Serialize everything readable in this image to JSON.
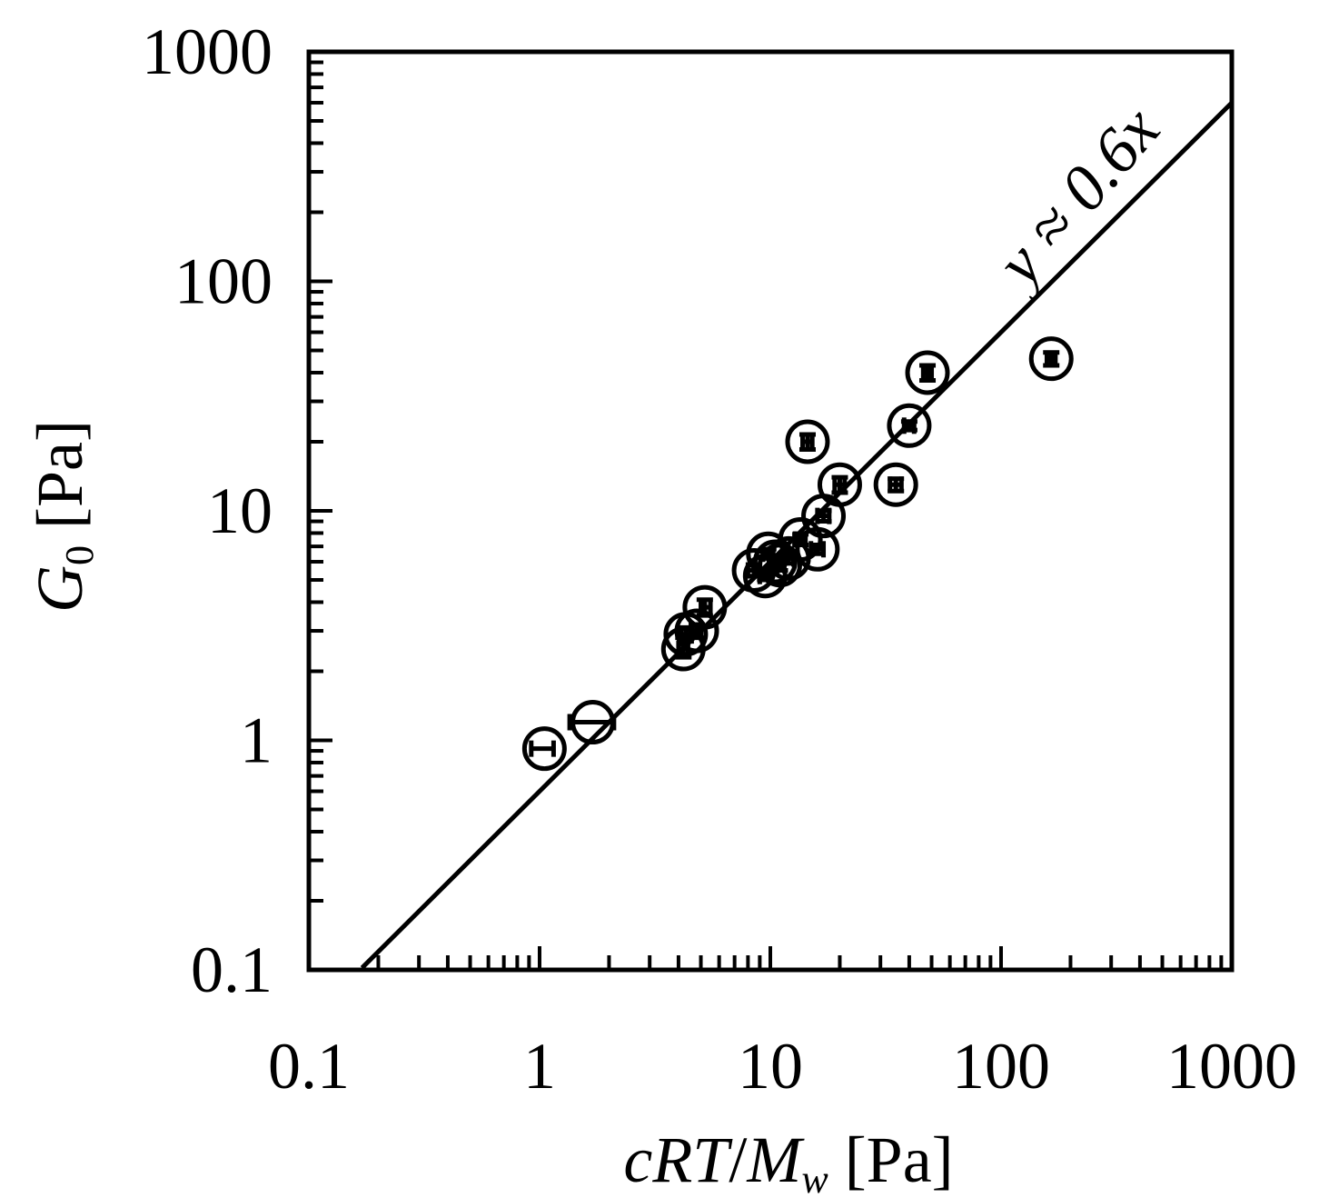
{
  "chart_data": {
    "type": "scatter",
    "xscale": "log",
    "yscale": "log",
    "xlim": [
      0.1,
      1000
    ],
    "ylim": [
      0.1,
      1000
    ],
    "xticks": [
      "0.1",
      "1",
      "10",
      "100",
      "1000"
    ],
    "yticks": [
      "0.1",
      "1",
      "10",
      "100",
      "1000"
    ],
    "xlabel": {
      "c": "c",
      "RT": "RT",
      "slash": "/",
      "M": "M",
      "w": "w",
      "unit": " [Pa]"
    },
    "ylabel": {
      "G": "G",
      "sub": "0",
      "unit": " [Pa]"
    },
    "fit_line": {
      "label": "y ≈ 0.6x",
      "slope": 0.6,
      "x_range": [
        0.17,
        1000
      ]
    },
    "grid": false,
    "marker": "open-circle-with-error-bars",
    "points": [
      {
        "x": 1.05,
        "y": 0.92,
        "xerr": [
          0.92,
          1.15
        ],
        "yerr": [
          0.92,
          0.92
        ]
      },
      {
        "x": 1.7,
        "y": 1.2,
        "xerr": [
          1.35,
          2.1
        ],
        "yerr": [
          1.2,
          1.2
        ]
      },
      {
        "x": 4.2,
        "y": 2.5,
        "xerr": [
          4.0,
          4.4
        ],
        "yerr": [
          2.3,
          2.8
        ]
      },
      {
        "x": 4.3,
        "y": 2.9,
        "xerr": [
          4.1,
          4.5
        ],
        "yerr": [
          2.7,
          3.1
        ]
      },
      {
        "x": 4.8,
        "y": 3.0,
        "xerr": [
          4.6,
          5.0
        ],
        "yerr": [
          2.8,
          3.2
        ]
      },
      {
        "x": 5.2,
        "y": 3.8,
        "xerr": [
          5.0,
          5.5
        ],
        "yerr": [
          3.5,
          4.1
        ]
      },
      {
        "x": 8.5,
        "y": 5.5,
        "xerr": [
          8.0,
          9.0
        ],
        "yerr": [
          5.2,
          5.8
        ]
      },
      {
        "x": 9.5,
        "y": 5.2,
        "xerr": [
          9.0,
          10.0
        ],
        "yerr": [
          5.0,
          5.5
        ]
      },
      {
        "x": 9.8,
        "y": 6.5,
        "xerr": [
          9.3,
          10.3
        ],
        "yerr": [
          6.2,
          6.8
        ]
      },
      {
        "x": 10.5,
        "y": 6.0,
        "xerr": [
          10.0,
          11.0
        ],
        "yerr": [
          5.7,
          6.3
        ]
      },
      {
        "x": 11.0,
        "y": 5.8,
        "xerr": [
          10.5,
          11.5
        ],
        "yerr": [
          5.5,
          6.1
        ]
      },
      {
        "x": 12.0,
        "y": 6.2,
        "xerr": [
          11.5,
          12.6
        ],
        "yerr": [
          5.9,
          6.5
        ]
      },
      {
        "x": 13.5,
        "y": 7.5,
        "xerr": [
          12.8,
          14.2
        ],
        "yerr": [
          7.1,
          7.9
        ]
      },
      {
        "x": 16.0,
        "y": 6.8,
        "xerr": [
          15.0,
          17.0
        ],
        "yerr": [
          6.5,
          7.1
        ]
      },
      {
        "x": 17.0,
        "y": 9.5,
        "xerr": [
          16.0,
          18.0
        ],
        "yerr": [
          9.0,
          10.0
        ]
      },
      {
        "x": 14.5,
        "y": 20.0,
        "xerr": [
          13.8,
          15.2
        ],
        "yerr": [
          18.5,
          21.5
        ]
      },
      {
        "x": 20.0,
        "y": 13.0,
        "xerr": [
          19.0,
          21.0
        ],
        "yerr": [
          12.0,
          14.0
        ]
      },
      {
        "x": 35.0,
        "y": 13.0,
        "xerr": [
          33.0,
          37.0
        ],
        "yerr": [
          12.2,
          13.8
        ]
      },
      {
        "x": 40.0,
        "y": 23.5,
        "xerr": [
          38.0,
          42.0
        ],
        "yerr": [
          22.5,
          24.5
        ]
      },
      {
        "x": 48.0,
        "y": 40.0,
        "xerr": [
          46.0,
          50.0
        ],
        "yerr": [
          37.0,
          43.0
        ]
      },
      {
        "x": 165.0,
        "y": 46.0,
        "xerr": [
          158.0,
          172.0
        ],
        "yerr": [
          43.0,
          49.0
        ]
      }
    ]
  }
}
